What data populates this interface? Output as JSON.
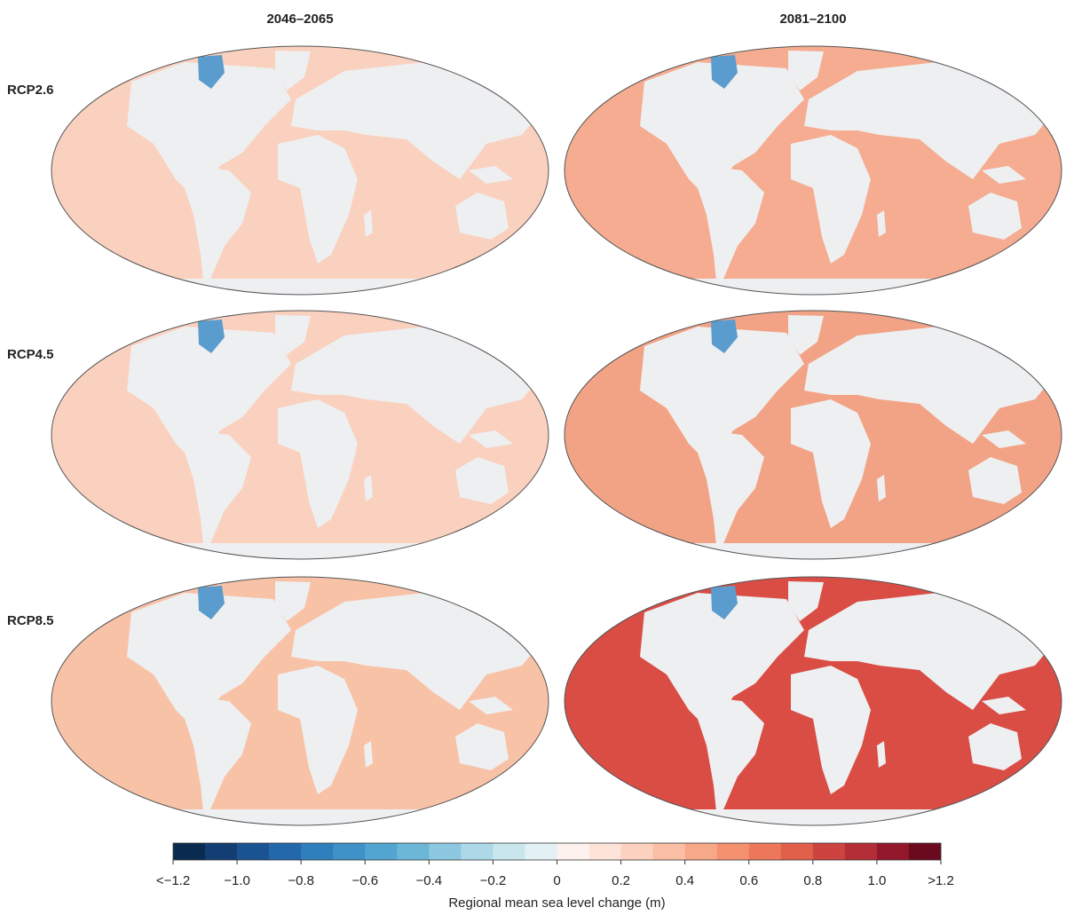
{
  "columns": [
    "2046–2065",
    "2081–2100"
  ],
  "rows": [
    {
      "label": "RCP2.6",
      "ocean_colors": [
        "#fad1bf",
        "#f5ac90"
      ]
    },
    {
      "label": "RCP4.5",
      "ocean_colors": [
        "#fad1bf",
        "#f3a385"
      ]
    },
    {
      "label": "RCP8.5",
      "ocean_colors": [
        "#f8c2a7",
        "#d94d45"
      ]
    }
  ],
  "colorbar": {
    "label": "Regional mean sea level change (m)",
    "lim": [
      -1.2,
      1.2
    ],
    "colors": [
      "#0b2a4f",
      "#123e73",
      "#1a5391",
      "#2468ac",
      "#2f7fbd",
      "#3e92c7",
      "#52a5d0",
      "#6cb6d8",
      "#8cc8e0",
      "#acd8e8",
      "#c9e6ef",
      "#e3f1f5",
      "#fdf2ee",
      "#fde3d8",
      "#fcd1bf",
      "#fbbfa5",
      "#f7a889",
      "#f3916e",
      "#ec7859",
      "#e06049",
      "#cd4340",
      "#b42e37",
      "#94182b",
      "#6b0a1f"
    ],
    "ticks": [
      {
        "value": -1.2,
        "label": "<−1.2"
      },
      {
        "value": -1.0,
        "label": "−1.0"
      },
      {
        "value": -0.8,
        "label": "−0.8"
      },
      {
        "value": -0.6,
        "label": "−0.6"
      },
      {
        "value": -0.4,
        "label": "−0.4"
      },
      {
        "value": -0.2,
        "label": "−0.2"
      },
      0,
      0.2,
      0.4,
      0.6,
      0.8,
      {
        "value": 1.0,
        "label": "1.0"
      },
      {
        "value": 1.2,
        "label": ">1.2"
      }
    ]
  }
}
